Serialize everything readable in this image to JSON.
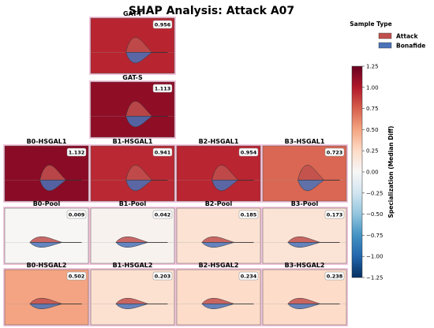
{
  "chart_data": {
    "type": "violin",
    "title": "SHAP Analysis: Attack A07",
    "legend": {
      "title": "Sample Type",
      "placement": "top-right",
      "entries": [
        {
          "label": "Attack",
          "color": "#c0504d"
        },
        {
          "label": "Bonafide",
          "color": "#4a72b8"
        }
      ]
    },
    "colorbar": {
      "label": "Specialization (Median Diff)",
      "range": [
        -1.25,
        1.25
      ],
      "ticks": [
        "1.25",
        "1.00",
        "0.75",
        "0.50",
        "0.25",
        "0.00",
        "−0.25",
        "−0.50",
        "−0.75",
        "−1.00",
        "−1.25"
      ],
      "colormap": "RdBu_r"
    },
    "panels": [
      {
        "title": "GAT-T",
        "value": 0.956,
        "label": "0.956"
      },
      {
        "title": "GAT-S",
        "value": 1.113,
        "label": "1.113"
      },
      {
        "title": "B0-HSGAL1",
        "value": 1.132,
        "label": "1.132"
      },
      {
        "title": "B1-HSGAL1",
        "value": 0.941,
        "label": "0.941"
      },
      {
        "title": "B2-HSGAL1",
        "value": 0.954,
        "label": "0.954"
      },
      {
        "title": "B3-HSGAL1",
        "value": 0.723,
        "label": "0.723"
      },
      {
        "title": "B0-Pool",
        "value": 0.009,
        "label": "0.009"
      },
      {
        "title": "B1-Pool",
        "value": 0.042,
        "label": "0.042"
      },
      {
        "title": "B2-Pool",
        "value": 0.185,
        "label": "0.185"
      },
      {
        "title": "B3-Pool",
        "value": 0.173,
        "label": "0.173"
      },
      {
        "title": "B0-HSGAL2",
        "value": 0.502,
        "label": "0.502"
      },
      {
        "title": "B1-HSGAL2",
        "value": 0.203,
        "label": "0.203"
      },
      {
        "title": "B2-HSGAL2",
        "value": 0.234,
        "label": "0.234"
      },
      {
        "title": "B3-HSGAL2",
        "value": 0.238,
        "label": "0.238"
      }
    ]
  }
}
